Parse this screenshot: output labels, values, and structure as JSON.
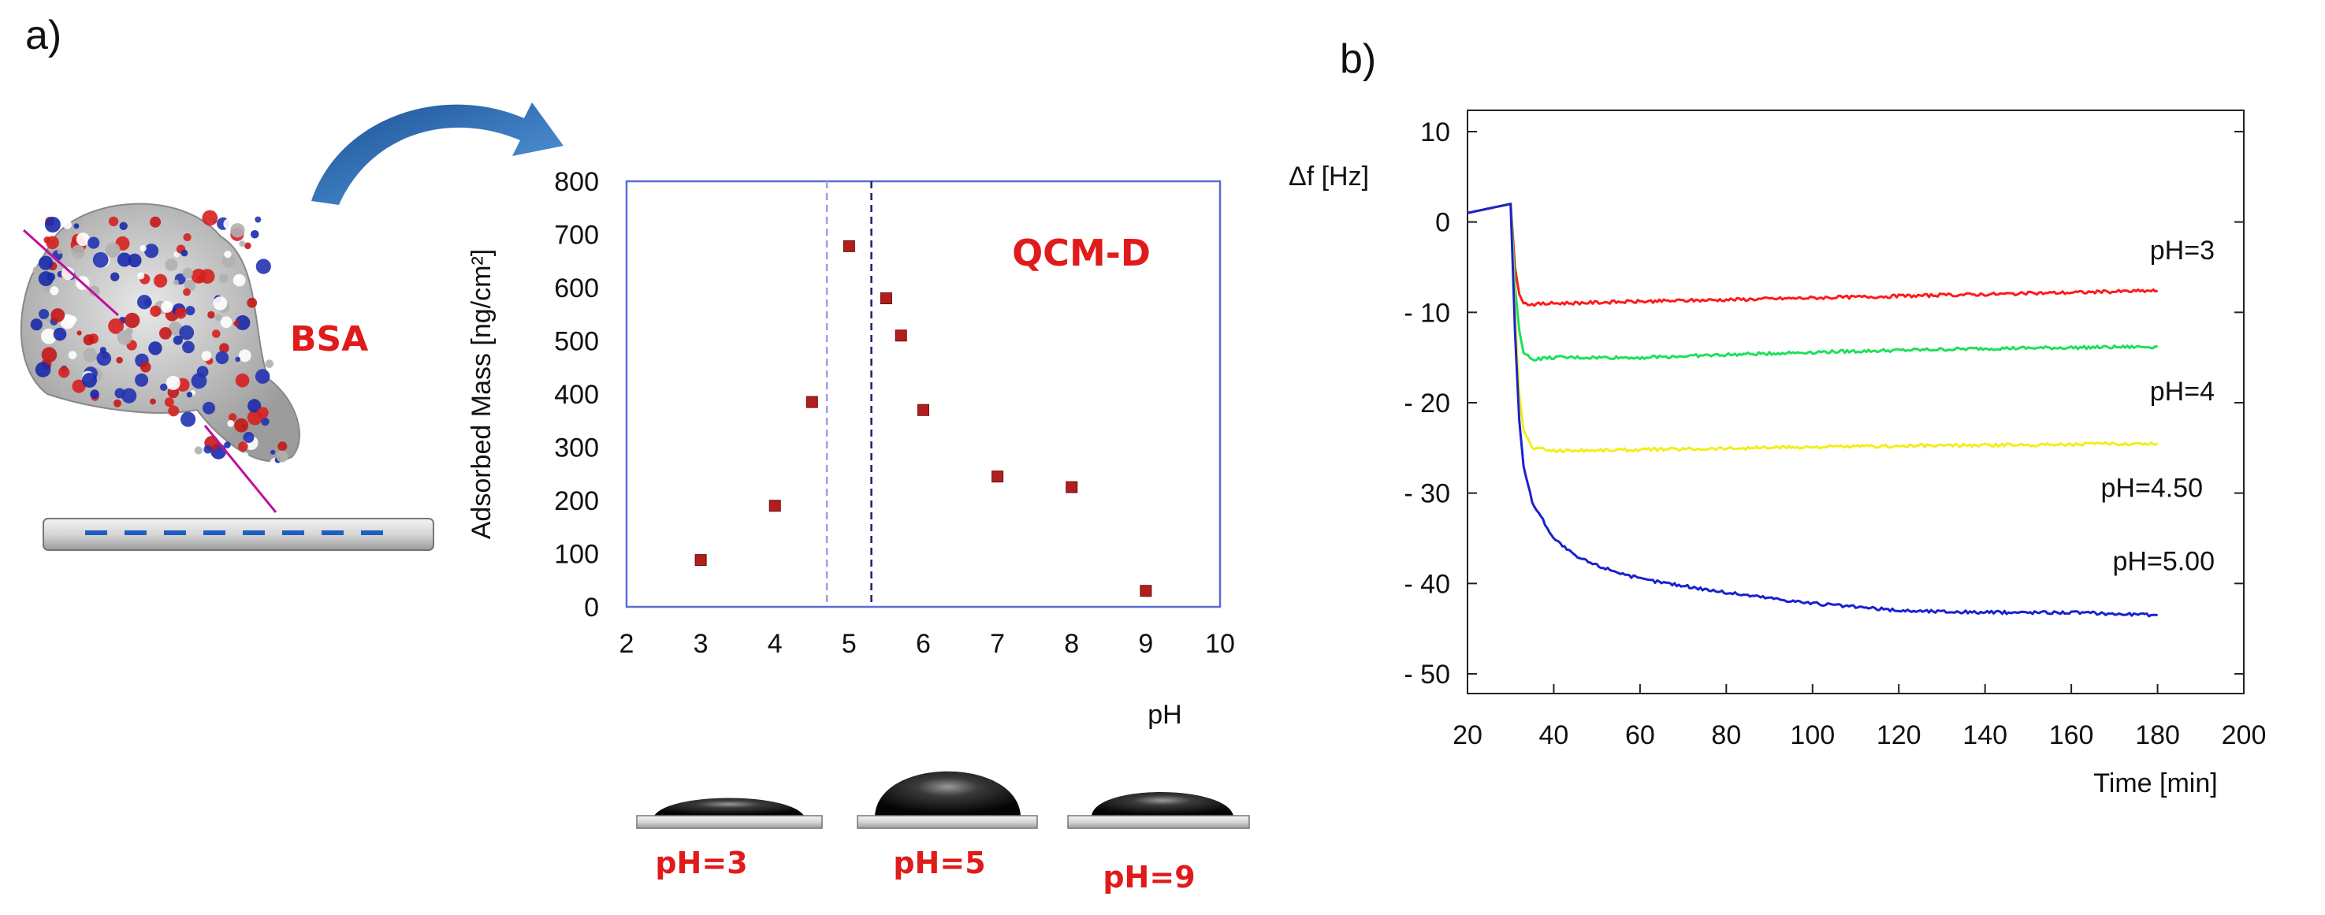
{
  "panel_a": {
    "label": "a)",
    "protein_label": "BSA",
    "contact_angle_labels": [
      "pH=3",
      "pH=5",
      "pH=9"
    ]
  },
  "panel_b": {
    "label": "b)"
  },
  "colors": {
    "red": "#e01b1b",
    "marker": "#b01e1e",
    "axis_blue": "#5b6bd6",
    "pH3": "#ff1a1a",
    "pH4": "#1ee05a",
    "pH4_50": "#f2ee1a",
    "pH5_00": "#1a22cc"
  },
  "chart_data": [
    {
      "type": "scatter",
      "title": "QCM-D",
      "xlabel": "pH",
      "ylabel": "Adsorbed Mass [ng/cm²]",
      "xlim": [
        2,
        10
      ],
      "ylim": [
        0,
        800
      ],
      "xticks": [
        2,
        3,
        4,
        5,
        6,
        7,
        8,
        9,
        10
      ],
      "yticks": [
        0,
        100,
        200,
        300,
        400,
        500,
        600,
        700,
        800
      ],
      "reference_lines": [
        4.7,
        5.3
      ],
      "points": [
        {
          "x": 3,
          "y": 88
        },
        {
          "x": 4,
          "y": 190
        },
        {
          "x": 4.5,
          "y": 385
        },
        {
          "x": 5,
          "y": 678
        },
        {
          "x": 5.5,
          "y": 580
        },
        {
          "x": 5.7,
          "y": 510
        },
        {
          "x": 6,
          "y": 370
        },
        {
          "x": 7,
          "y": 245
        },
        {
          "x": 8,
          "y": 225
        },
        {
          "x": 9,
          "y": 30
        }
      ]
    },
    {
      "type": "line",
      "title": "",
      "xlabel": "Time [min]",
      "ylabel": "Δf [Hz]",
      "xlim": [
        20,
        200
      ],
      "ylim": [
        -50,
        10
      ],
      "xticks": [
        20,
        40,
        60,
        80,
        100,
        120,
        140,
        160,
        180,
        200
      ],
      "yticks": [
        10,
        0,
        -10,
        -20,
        -30,
        -40,
        -50
      ],
      "ytick_labels": [
        "10",
        "0",
        "- 10",
        "- 20",
        "- 30",
        "- 40",
        "- 50"
      ],
      "series": [
        {
          "name": "pH=3",
          "x": [
            20,
            30,
            31,
            32,
            33,
            35,
            40,
            60,
            100,
            140,
            180
          ],
          "y": [
            1,
            2,
            -5,
            -8,
            -9,
            -9.1,
            -9,
            -8.8,
            -8.4,
            -8,
            -7.6
          ]
        },
        {
          "name": "pH=4",
          "x": [
            20,
            30,
            31,
            32,
            33,
            35,
            40,
            60,
            100,
            140,
            180
          ],
          "y": [
            1,
            2,
            -7,
            -12,
            -14.5,
            -15.2,
            -15,
            -15,
            -14.4,
            -14,
            -13.8
          ]
        },
        {
          "name": "pH=4.50",
          "x": [
            20,
            30,
            31,
            32,
            33,
            35,
            40,
            60,
            100,
            140,
            180
          ],
          "y": [
            1,
            2,
            -10,
            -19,
            -23,
            -25,
            -25.3,
            -25.2,
            -24.9,
            -24.7,
            -24.5
          ]
        },
        {
          "name": "pH=5.00",
          "x": [
            20,
            30,
            31,
            32,
            33,
            35,
            40,
            45,
            50,
            60,
            80,
            100,
            120,
            140,
            160,
            180
          ],
          "y": [
            1,
            2,
            -12,
            -22,
            -27,
            -31,
            -35,
            -37,
            -38,
            -39.5,
            -41,
            -42.2,
            -43,
            -43.2,
            -43.2,
            -43.5
          ]
        }
      ]
    }
  ]
}
